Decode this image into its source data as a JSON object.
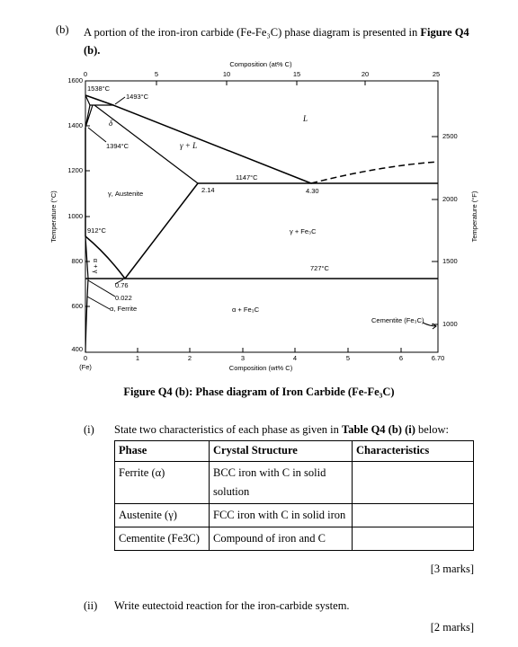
{
  "question": {
    "label": "(b)",
    "text": "A portion of the iron-iron carbide (Fe-Fe₃C) phase diagram is presented in ",
    "ref": "Figure Q4 (b)."
  },
  "figure": {
    "top_axis": {
      "title": "Composition (at% C)",
      "ticks": [
        "0",
        "5",
        "10",
        "15",
        "20",
        "25"
      ]
    },
    "left_axis": {
      "title": "Temperature (°C)",
      "ticks": [
        "1600",
        "1400",
        "1200",
        "1000",
        "800",
        "600",
        "400"
      ]
    },
    "right_axis": {
      "title": "Temperature (°F)",
      "ticks": [
        "2500",
        "2000",
        "1500",
        "1000"
      ]
    },
    "bottom_axis": {
      "title": "Composition (wt% C)",
      "ticks": [
        "0",
        "1",
        "2",
        "3",
        "4",
        "5",
        "6",
        "6.70"
      ],
      "origin_note": "(Fe)"
    },
    "labels": [
      "1538°C",
      "1493°C",
      "δ",
      "1394°C",
      "γ + L",
      "L",
      "1147°C",
      "2.14",
      "4.30",
      "γ, Austenite",
      "912°C",
      "γ + Fe₃C",
      "727°C",
      "α + γ",
      "0.76",
      "0.022",
      "α, Ferrite",
      "α + Fe₃C",
      "Cementite (Fe₃C)"
    ]
  },
  "caption": "Figure Q4 (b): Phase diagram of Iron Carbide (Fe-Fe₃C)",
  "part_i": {
    "label": "(i)",
    "text": "State two characteristics of each phase as given in ",
    "ref": "Table Q4 (b) (i)",
    "text_end": " below:"
  },
  "table": {
    "header": [
      "Phase",
      "Crystal Structure",
      "Characteristics"
    ],
    "rows": [
      [
        "Ferrite (α)",
        "BCC iron with C in solid solution"
      ],
      [
        "Austenite (γ)",
        "FCC iron with C in solid iron"
      ],
      [
        "Cementite (Fe3C)",
        "Compound of iron and C"
      ]
    ]
  },
  "marks_i": "[3 marks]",
  "part_ii": {
    "label": "(ii)",
    "text": "Write eutectoid reaction for the iron-carbide system."
  },
  "marks_ii": "[2 marks]"
}
